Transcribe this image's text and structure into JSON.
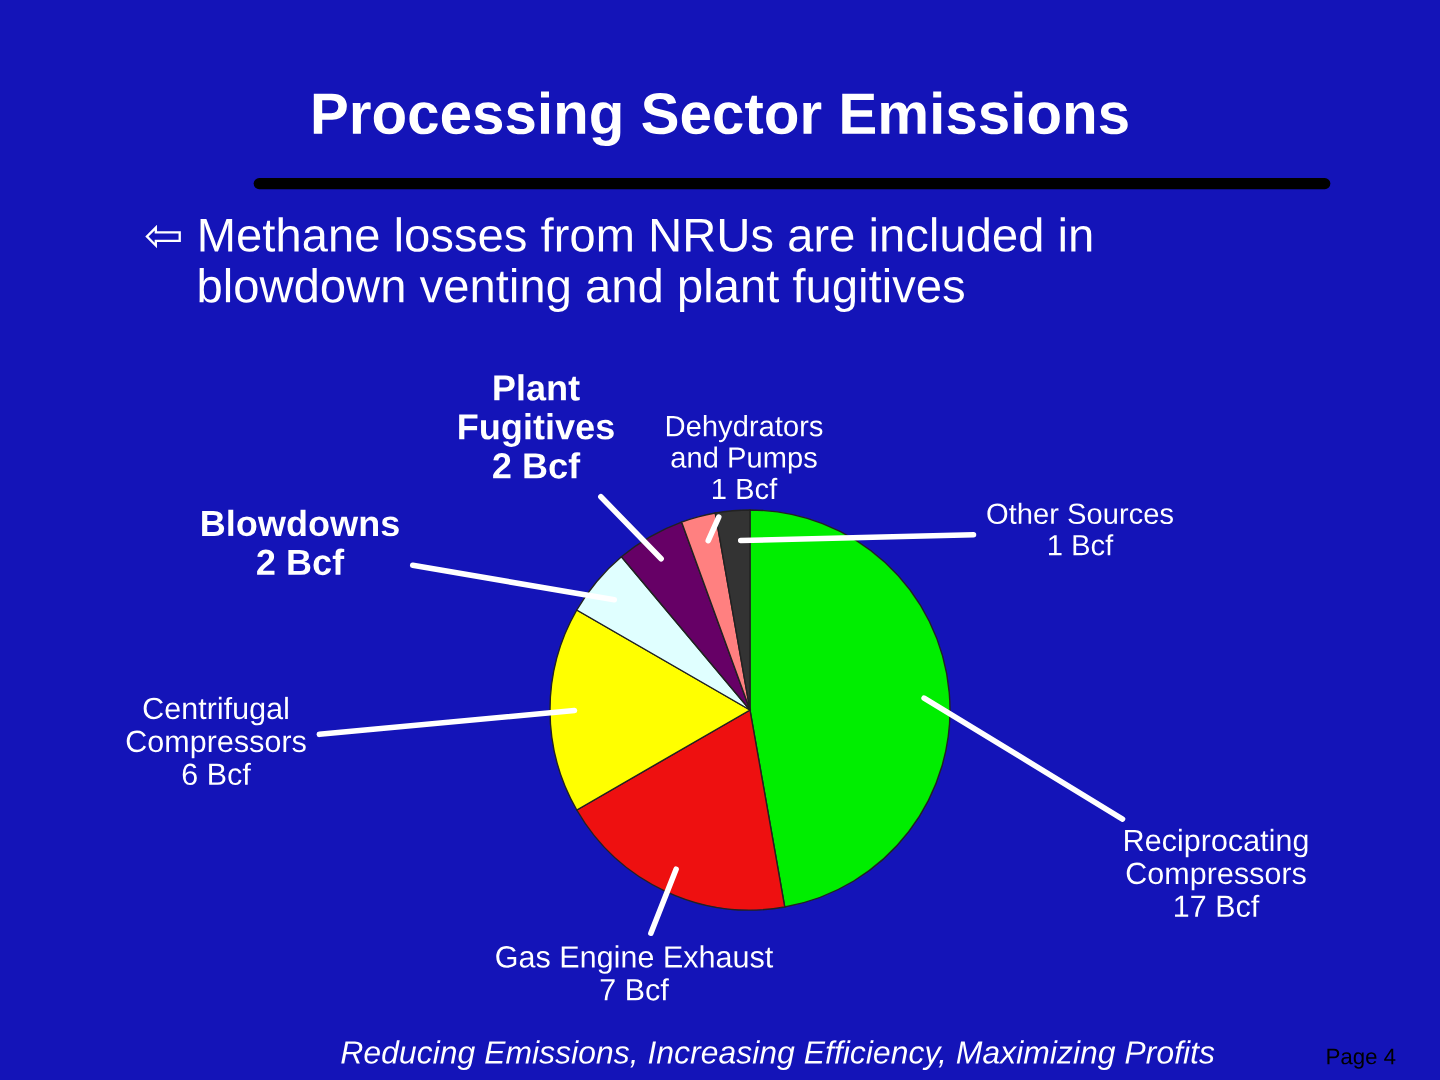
{
  "chart_data": {
    "type": "pie",
    "title": "Processing Sector Emissions",
    "subtitle": "⇦ Methane losses from NRUs are included in\n    blowdown venting and plant fugitives",
    "categories": [
      "Reciprocating\nCompressors",
      "Gas Engine Exhaust",
      "Centrifugal\nCompressors",
      "Blowdowns",
      "Plant\nFugitives",
      "Dehydrators\nand Pumps",
      "Other Sources"
    ],
    "values": [
      17,
      7,
      6,
      2,
      2,
      1,
      1
    ],
    "value_labels": [
      "17 Bcf",
      "7 Bcf",
      "6 Bcf",
      "2 Bcf",
      "2 Bcf",
      "1 Bcf",
      "1 Bcf"
    ],
    "colors": [
      "#00ee00",
      "#ee1010",
      "#ffff00",
      "#e0ffff",
      "#660066",
      "#ff8080",
      "#333333"
    ],
    "annotations": [
      "Reducing Emissions, Increasing Efficiency, Maximizing Profits",
      "Page 4"
    ]
  }
}
